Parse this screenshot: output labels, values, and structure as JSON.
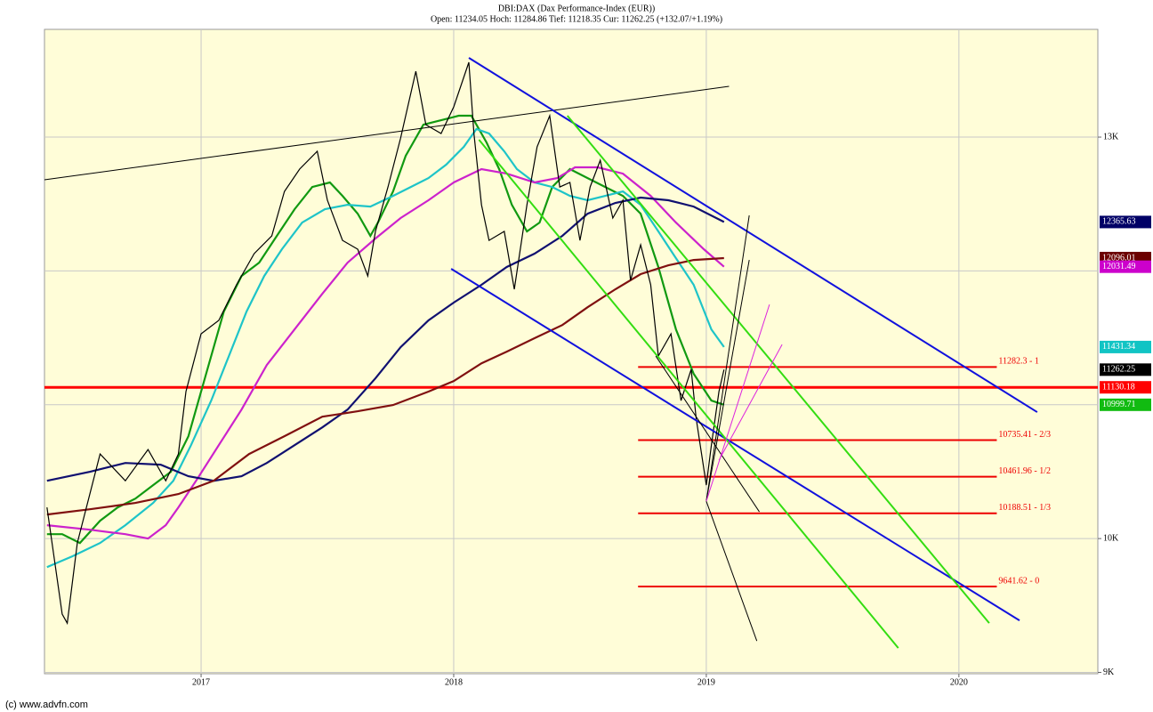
{
  "chart_data": {
    "type": "line",
    "title": "DBI:DAX (Dax Performance-Index (EUR))",
    "subtitle": "Open: 11234.05 Hoch: 11284.86 Tief: 11218.35 Cur: 11262.25 (+132.07/+1.19%)",
    "footer": "(c) www.advfn.com",
    "xlim": [
      2016.38,
      2020.55
    ],
    "ylim": [
      8990,
      13805
    ],
    "xticks": [
      2017,
      2018,
      2019,
      2020
    ],
    "yticks": [
      {
        "value": 13000,
        "label": "13K"
      },
      {
        "value": 10000,
        "label": "10K"
      },
      {
        "value": 9000,
        "label": "9K"
      }
    ],
    "ygrid": [
      9000,
      10000,
      11000,
      12000,
      13000
    ],
    "grid": true,
    "background": "#fffdd8",
    "series": [
      {
        "color": "#119911",
        "width": 2.2,
        "x": [
          2016.39,
          2016.45,
          2016.52,
          2016.6,
          2016.67,
          2016.74,
          2016.81,
          2016.88,
          2016.95,
          2017.02,
          2017.09,
          2017.16,
          2017.23,
          2017.3,
          2017.37,
          2017.44,
          2017.51,
          2017.56,
          2017.62,
          2017.67,
          2017.7,
          2017.76,
          2017.81,
          2017.88,
          2017.95,
          2018.02,
          2018.07,
          2018.13,
          2018.18,
          2018.23,
          2018.29,
          2018.34,
          2018.39,
          2018.46,
          2018.53,
          2018.6,
          2018.67,
          2018.74,
          2018.81,
          2018.88,
          2018.95,
          2019.02,
          2019.07
        ],
        "values": [
          10033,
          10033,
          9967,
          10133,
          10233,
          10299,
          10399,
          10499,
          10765,
          11231,
          11696,
          11962,
          12062,
          12262,
          12461,
          12627,
          12661,
          12561,
          12428,
          12262,
          12361,
          12594,
          12860,
          13093,
          13126,
          13160,
          13160,
          12960,
          12761,
          12494,
          12295,
          12361,
          12627,
          12761,
          12694,
          12627,
          12561,
          12428,
          12029,
          11563,
          11231,
          11031,
          10999.71
        ]
      },
      {
        "color": "#1ec4c8",
        "width": 2.2,
        "x": [
          2016.39,
          2016.49,
          2016.6,
          2016.7,
          2016.81,
          2016.89,
          2016.96,
          2017.04,
          2017.11,
          2017.18,
          2017.25,
          2017.32,
          2017.4,
          2017.49,
          2017.58,
          2017.67,
          2017.76,
          2017.83,
          2017.9,
          2017.97,
          2018.04,
          2018.09,
          2018.14,
          2018.2,
          2018.25,
          2018.32,
          2018.39,
          2018.46,
          2018.53,
          2018.6,
          2018.67,
          2018.74,
          2018.81,
          2018.88,
          2018.95,
          2019.02,
          2019.07
        ],
        "values": [
          9787,
          9867,
          9967,
          10100,
          10266,
          10432,
          10698,
          11031,
          11364,
          11696,
          11962,
          12162,
          12361,
          12461,
          12494,
          12481,
          12561,
          12627,
          12694,
          12794,
          12927,
          13060,
          13027,
          12894,
          12761,
          12661,
          12627,
          12561,
          12528,
          12561,
          12594,
          12494,
          12295,
          12095,
          11896,
          11563,
          11431.34
        ]
      },
      {
        "color": "#cc22cc",
        "width": 2.2,
        "x": [
          2016.39,
          2016.56,
          2016.7,
          2016.79,
          2016.86,
          2016.91,
          2016.98,
          2017.07,
          2017.16,
          2017.26,
          2017.37,
          2017.48,
          2017.58,
          2017.69,
          2017.79,
          2017.9,
          2018.0,
          2018.11,
          2018.21,
          2018.32,
          2018.41,
          2018.48,
          2018.57,
          2018.67,
          2018.78,
          2018.88,
          2018.99,
          2019.07
        ],
        "values": [
          10100,
          10066,
          10033,
          10000,
          10100,
          10233,
          10432,
          10698,
          10964,
          11297,
          11563,
          11829,
          12062,
          12242,
          12395,
          12528,
          12661,
          12761,
          12727,
          12661,
          12694,
          12774,
          12774,
          12727,
          12561,
          12361,
          12162,
          12031.49
        ]
      },
      {
        "color": "#101070",
        "width": 2.2,
        "x": [
          2016.39,
          2016.56,
          2016.7,
          2016.84,
          2016.95,
          2017.05,
          2017.16,
          2017.26,
          2017.37,
          2017.48,
          2017.58,
          2017.69,
          2017.79,
          2017.9,
          2018.0,
          2018.11,
          2018.21,
          2018.32,
          2018.43,
          2018.53,
          2018.64,
          2018.74,
          2018.85,
          2018.95,
          2019.07
        ],
        "values": [
          10432,
          10499,
          10565,
          10552,
          10466,
          10432,
          10466,
          10565,
          10698,
          10831,
          10964,
          11197,
          11430,
          11630,
          11763,
          11896,
          12029,
          12129,
          12262,
          12428,
          12508,
          12548,
          12528,
          12481,
          12365.63
        ]
      },
      {
        "color": "#801010",
        "width": 2.2,
        "x": [
          2016.39,
          2016.56,
          2016.74,
          2016.91,
          2017.05,
          2017.19,
          2017.33,
          2017.48,
          2017.62,
          2017.76,
          2017.9,
          2018.0,
          2018.11,
          2018.21,
          2018.32,
          2018.43,
          2018.53,
          2018.64,
          2018.74,
          2018.85,
          2018.95,
          2019.07
        ],
        "values": [
          10180,
          10219,
          10266,
          10333,
          10432,
          10632,
          10765,
          10911,
          10951,
          10998,
          11098,
          11177,
          11310,
          11397,
          11497,
          11596,
          11729,
          11863,
          11976,
          12042,
          12082,
          12096.01
        ]
      },
      {
        "color": "#000000",
        "width": 1.2,
        "x": [
          2016.39,
          2016.45,
          2016.47,
          2016.51,
          2016.6,
          2016.7,
          2016.79,
          2016.86,
          2016.91,
          2016.94,
          2017.0,
          2017.07,
          2017.14,
          2017.21,
          2017.28,
          2017.33,
          2017.39,
          2017.46,
          2017.5,
          2017.56,
          2017.62,
          2017.66,
          2017.69,
          2017.74,
          2017.79,
          2017.85,
          2017.89,
          2017.95,
          2018.0,
          2018.06,
          2018.08,
          2018.11,
          2018.14,
          2018.2,
          2018.24,
          2018.29,
          2018.33,
          2018.38,
          2018.42,
          2018.46,
          2018.5,
          2018.54,
          2018.58,
          2018.63,
          2018.67,
          2018.7,
          2018.74,
          2018.78,
          2018.81,
          2018.86,
          2018.9,
          2018.94,
          2018.96,
          2019.0,
          2019.02,
          2019.05,
          2019.07
        ],
        "values": [
          10233,
          9435,
          9368,
          9967,
          10632,
          10432,
          10665,
          10432,
          10632,
          11098,
          11530,
          11630,
          11896,
          12129,
          12262,
          12594,
          12761,
          12894,
          12528,
          12228,
          12162,
          11962,
          12295,
          12627,
          12993,
          13492,
          13093,
          13027,
          13226,
          13559,
          13027,
          12494,
          12228,
          12295,
          11863,
          12494,
          12927,
          13160,
          12627,
          12661,
          12228,
          12627,
          12827,
          12395,
          12528,
          11929,
          12195,
          11896,
          11364,
          11530,
          11031,
          11264,
          10898,
          10399,
          10698,
          11098,
          11262.25
        ]
      }
    ],
    "trendlines": [
      {
        "color": "#000000",
        "width": 1,
        "x": [
          2016.38,
          2019.09
        ],
        "y": [
          12681,
          13379
        ]
      },
      {
        "color": "#1111dd",
        "width": 2,
        "x": [
          2018.06,
          2020.31
        ],
        "y": [
          13592,
          10945
        ]
      },
      {
        "color": "#1111dd",
        "width": 2,
        "x": [
          2017.99,
          2020.24
        ],
        "y": [
          12016,
          9388
        ]
      },
      {
        "color": "#33dd11",
        "width": 2,
        "x": [
          2018.1,
          2019.76
        ],
        "y": [
          12980,
          9182
        ]
      },
      {
        "color": "#33dd11",
        "width": 2,
        "x": [
          2018.45,
          2020.12
        ],
        "y": [
          13160,
          9368
        ]
      },
      {
        "color": "#000000",
        "width": 1,
        "x": [
          2019.0,
          2019.17
        ],
        "y": [
          10279,
          12415
        ]
      },
      {
        "color": "#000000",
        "width": 1,
        "x": [
          2019.0,
          2019.17
        ],
        "y": [
          10279,
          12082
        ]
      },
      {
        "color": "#000000",
        "width": 1,
        "x": [
          2019.0,
          2019.2
        ],
        "y": [
          10279,
          9235
        ]
      },
      {
        "color": "#000000",
        "width": 1,
        "x": [
          2018.8,
          2019.21
        ],
        "y": [
          11364,
          10200
        ]
      },
      {
        "color": "#dd22dd",
        "width": 1,
        "x": [
          2019.0,
          2019.25
        ],
        "y": [
          10279,
          11749
        ]
      },
      {
        "color": "#dd22dd",
        "width": 1,
        "x": [
          2019.05,
          2019.3
        ],
        "y": [
          10585,
          11450
        ]
      }
    ],
    "hline": {
      "value": 11130.18,
      "color": "#ff0000"
    },
    "fib_x": [
      2018.73,
      2020.15
    ],
    "fib": [
      {
        "value": 11282.3,
        "label": "11282.3 - 1"
      },
      {
        "value": 10735.41,
        "label": "10735.41 - 2/3"
      },
      {
        "value": 10461.96,
        "label": "10461.96 - 1/2"
      },
      {
        "value": 10188.51,
        "label": "10188.51 - 1/3"
      },
      {
        "value": 9641.62,
        "label": "9641.62 - 0"
      }
    ],
    "fib_color": "#ee0000",
    "price_tags": [
      {
        "value": 12365.63,
        "color": "#000066"
      },
      {
        "value": 12096.01,
        "color": "#6b0000"
      },
      {
        "value": 12031.49,
        "color": "#cc00cc"
      },
      {
        "value": 11431.34,
        "color": "#11c4c4"
      },
      {
        "value": 11262.25,
        "color": "#000000"
      },
      {
        "value": 11130.18,
        "color": "#ff0000"
      },
      {
        "value": 10999.71,
        "color": "#11bb11"
      }
    ]
  }
}
